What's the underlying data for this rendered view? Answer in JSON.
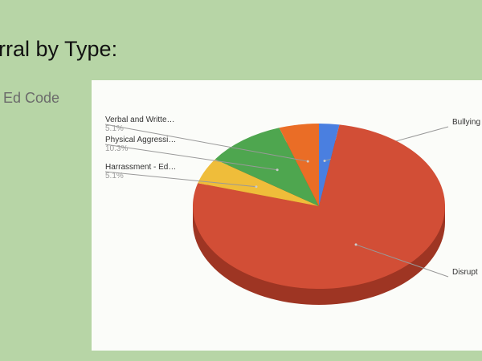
{
  "slide": {
    "title": "rral by Type:",
    "subtitle": "Ed Code"
  },
  "chart_data": {
    "type": "pie",
    "style": "3d",
    "start": "top",
    "direction": "clockwise",
    "slices": [
      {
        "label": "Bullying",
        "value": 2.6,
        "percent_label": "",
        "color": "#4a7fe0"
      },
      {
        "label": "Disrupt",
        "value": 76.9,
        "percent_label": "",
        "color": "#d24e36"
      },
      {
        "label": "Harrassment - Ed…",
        "value": 5.1,
        "percent_label": "5.1%",
        "color": "#efbd3a"
      },
      {
        "label": "Physical Aggressi…",
        "value": 10.3,
        "percent_label": "10.3%",
        "color": "#4ea64f"
      },
      {
        "label": "Verbal and Writte…",
        "value": 5.1,
        "percent_label": "5.1%",
        "color": "#ea6d26"
      }
    ],
    "side_color": "#9e3523"
  }
}
